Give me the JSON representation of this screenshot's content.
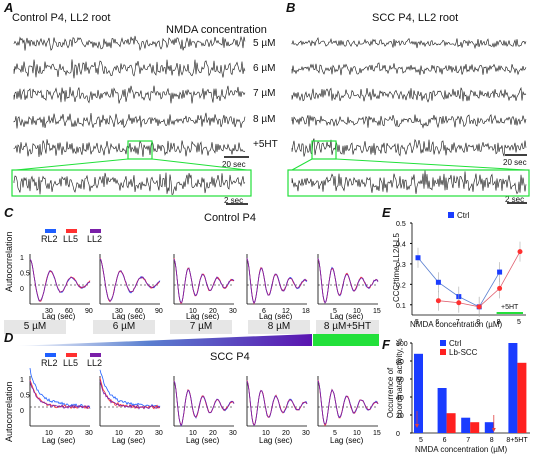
{
  "panels": {
    "A": {
      "letter": "A",
      "title": "Control P4, LL2 root",
      "concentration_heading": "NMDA concentration",
      "rows": [
        "5 µM",
        "6 µM",
        "7 µM",
        "8 µM",
        "+5HT"
      ],
      "scale1": "20 sec",
      "scale2": "2 sec"
    },
    "B": {
      "letter": "B",
      "title": "SCC P4, LL2 root",
      "scale1": "20 sec",
      "scale2": "2 sec"
    },
    "C": {
      "letter": "C",
      "title": "Control P4",
      "ylabel": "Autocorrelation",
      "xlabel": "Lag (sec)",
      "legend": [
        "RL2",
        "LL5",
        "LL2"
      ]
    },
    "D": {
      "letter": "D",
      "title": "SCC P4",
      "ylabel": "Autocorrelation",
      "xlabel": "Lag (sec)",
      "legend": [
        "RL2",
        "LL5",
        "LL2"
      ]
    },
    "E": {
      "letter": "E",
      "ylabel": "CCC*time, LL2/LL5",
      "xlabel": "NMDA concentration (µM)",
      "legend": "Ctrl",
      "annotation": "+5HT"
    },
    "F": {
      "letter": "F",
      "ylabel": "Occurrence of coordinated activity, %",
      "xlabel": "NMDA concentration (µM)",
      "legend": [
        "Ctrl",
        "Lb-SCC"
      ]
    }
  },
  "concentration_bar": [
    "5 µM",
    "6 µM",
    "7 µM",
    "8 µM",
    "8 µM+5HT"
  ],
  "colors": {
    "rl2": "#1f5fff",
    "ll5": "#ff3030",
    "ll2": "#7a1fa8",
    "green": "#22e03a",
    "ctrl_bar": "#1a3cff",
    "scc_bar": "#ff2020"
  },
  "acf_ticks": {
    "c": [
      [
        "30",
        "60",
        "90"
      ],
      [
        "30",
        "60",
        "90"
      ],
      [
        "10",
        "20",
        "30"
      ],
      [
        "6",
        "12",
        "18"
      ],
      [
        "5",
        "10",
        "15"
      ]
    ],
    "d": [
      [
        "10",
        "20",
        "30"
      ],
      [
        "10",
        "20",
        "30"
      ],
      [
        "10",
        "20",
        "30"
      ],
      [
        "10",
        "20",
        "30"
      ],
      [
        "5",
        "10",
        "15"
      ]
    ],
    "yticks": [
      "1",
      "0.5",
      "0"
    ]
  },
  "chart_data": [
    {
      "type": "line",
      "title": "",
      "xlabel": "NMDA concentration (µM)",
      "ylabel": "CCC*time, LL2/LL5",
      "categories": [
        "5",
        "6",
        "7",
        "8",
        "8",
        "5"
      ],
      "ylim": [
        0.05,
        0.5
      ],
      "yticks": [
        "0.1",
        "0.2",
        "0.3",
        "0.4",
        "0.5"
      ],
      "series": [
        {
          "name": "Ctrl",
          "values": [
            0.33,
            0.21,
            0.14,
            0.09,
            0.26,
            null
          ]
        },
        {
          "name": "",
          "values": [
            null,
            0.12,
            0.11,
            0.09,
            0.18,
            0.36
          ]
        }
      ]
    },
    {
      "type": "bar",
      "title": "",
      "xlabel": "NMDA concentration (µM)",
      "ylabel": "Occurrence of coordinated activity, %",
      "categories": [
        "5",
        "6",
        "7",
        "8",
        "8+5HT"
      ],
      "ylim": [
        0,
        100
      ],
      "yticks": [
        "0",
        "20",
        "40",
        "60",
        "80",
        "100"
      ],
      "series": [
        {
          "name": "Ctrl",
          "values": [
            88,
            50,
            17,
            12,
            100
          ]
        },
        {
          "name": "Lb-SCC",
          "values": [
            0,
            22,
            12,
            0,
            78
          ]
        }
      ]
    }
  ]
}
